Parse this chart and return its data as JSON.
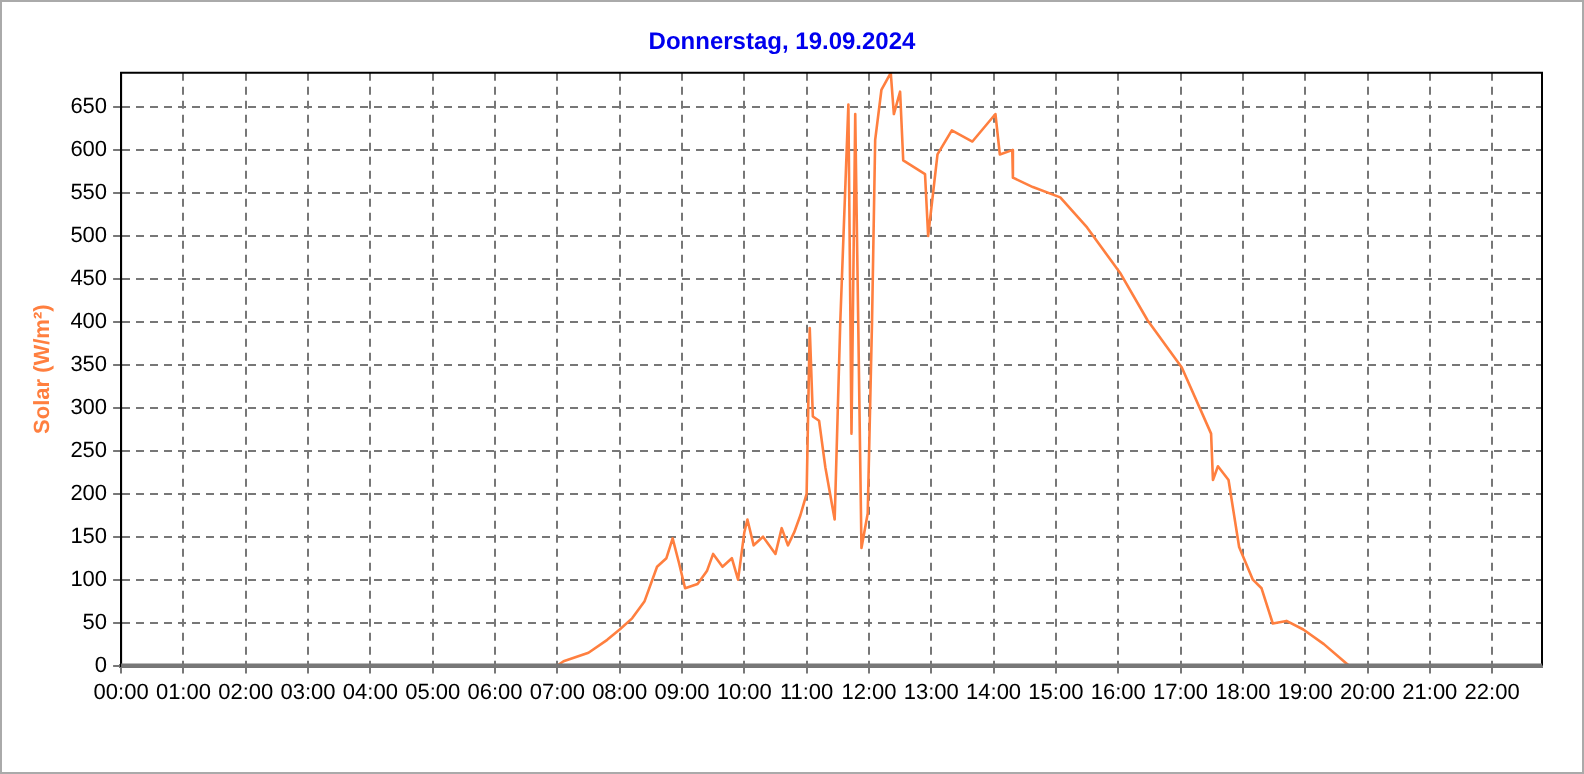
{
  "chart_data": {
    "type": "line",
    "title": "Donnerstag, 19.09.2024",
    "ylabel": "Solar (W/m²)",
    "xlim": [
      0,
      22.8
    ],
    "ylim": [
      0,
      690
    ],
    "xticks": [
      {
        "value": 0,
        "label": "00:00"
      },
      {
        "value": 1,
        "label": "01:00"
      },
      {
        "value": 2,
        "label": "02:00"
      },
      {
        "value": 3,
        "label": "03:00"
      },
      {
        "value": 4,
        "label": "04:00"
      },
      {
        "value": 5,
        "label": "05:00"
      },
      {
        "value": 6,
        "label": "06:00"
      },
      {
        "value": 7,
        "label": "07:00"
      },
      {
        "value": 8,
        "label": "08:00"
      },
      {
        "value": 9,
        "label": "09:00"
      },
      {
        "value": 10,
        "label": "10:00"
      },
      {
        "value": 11,
        "label": "11:00"
      },
      {
        "value": 12,
        "label": "12:00"
      },
      {
        "value": 13,
        "label": "13:00"
      },
      {
        "value": 14,
        "label": "14:00"
      },
      {
        "value": 15,
        "label": "15:00"
      },
      {
        "value": 16,
        "label": "16:00"
      },
      {
        "value": 17,
        "label": "17:00"
      },
      {
        "value": 18,
        "label": "18:00"
      },
      {
        "value": 19,
        "label": "19:00"
      },
      {
        "value": 20,
        "label": "20:00"
      },
      {
        "value": 21,
        "label": "21:00"
      },
      {
        "value": 22,
        "label": "22:00"
      }
    ],
    "yticks": [
      0,
      50,
      100,
      150,
      200,
      250,
      300,
      350,
      400,
      450,
      500,
      550,
      600,
      650
    ],
    "grid": true,
    "legend": false,
    "marker": "none",
    "line_style": "solid",
    "series": [
      {
        "color": "#ff7f3f",
        "x": [
          0,
          7,
          7.1,
          7.5,
          7.8,
          8,
          8.2,
          8.4,
          8.6,
          8.75,
          8.85,
          8.95,
          9.05,
          9.25,
          9.4,
          9.5,
          9.65,
          9.8,
          9.9,
          10,
          10.05,
          10.15,
          10.3,
          10.5,
          10.6,
          10.7,
          10.8,
          10.9,
          11,
          11.05,
          11.1,
          11.2,
          11.3,
          11.45,
          11.54,
          11.67,
          11.72,
          11.78,
          11.88,
          11.98,
          12.05,
          12.1,
          12.2,
          12.35,
          12.4,
          12.5,
          12.55,
          12.9,
          12.95,
          13.1,
          13.33,
          13.66,
          14.03,
          14.1,
          14.3,
          14.31,
          14.63,
          15.07,
          15.5,
          16.04,
          16.47,
          17.02,
          17.35,
          17.49,
          17.52,
          17.6,
          17.77,
          17.94,
          18.16,
          18.3,
          18.48,
          18.7,
          18.97,
          19.3,
          19.7,
          22.8
        ],
        "values": [
          0,
          0,
          5,
          15,
          30,
          42,
          55,
          75,
          115,
          125,
          148,
          120,
          90,
          95,
          110,
          130,
          115,
          125,
          100,
          155,
          170,
          140,
          150,
          130,
          160,
          140,
          155,
          175,
          200,
          393,
          290,
          285,
          231,
          170,
          400,
          653,
          270,
          642,
          137,
          177,
          402,
          612,
          670,
          690,
          642,
          668,
          588,
          572,
          500,
          595,
          623,
          610,
          642,
          595,
          600,
          568,
          557,
          545,
          510,
          456,
          402,
          347,
          293,
          270,
          216,
          232,
          216,
          138,
          100,
          90,
          49,
          52,
          42,
          25,
          0,
          0
        ]
      }
    ]
  }
}
